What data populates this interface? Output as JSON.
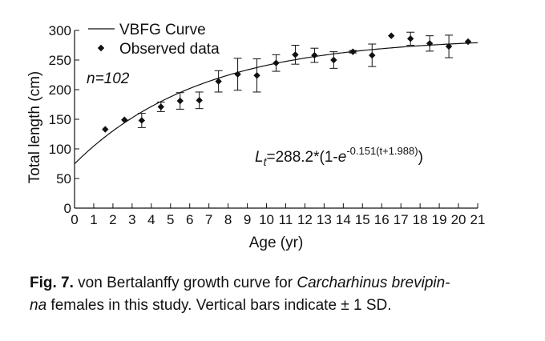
{
  "chart_data": {
    "type": "scatter",
    "xlabel": "Age (yr)",
    "ylabel": "Total length (cm)",
    "xlim": [
      0,
      21
    ],
    "ylim": [
      0,
      300
    ],
    "x_ticks": [
      0,
      1,
      2,
      3,
      4,
      5,
      6,
      7,
      8,
      9,
      10,
      11,
      12,
      13,
      14,
      15,
      16,
      17,
      18,
      19,
      20,
      21
    ],
    "y_ticks": [
      0,
      50,
      100,
      150,
      200,
      250,
      300
    ],
    "grid": false,
    "legend_position": "top-left",
    "series": [
      {
        "name": "VBFG Curve",
        "kind": "line",
        "model": {
          "Linf": 288.2,
          "k": 0.151,
          "t0": -1.988
        }
      },
      {
        "name": "Observed data",
        "kind": "scatter",
        "marker": "diamond",
        "points": [
          {
            "x": 1.6,
            "y": 133,
            "sd": 0
          },
          {
            "x": 2.6,
            "y": 149,
            "sd": 0
          },
          {
            "x": 3.5,
            "y": 148,
            "sd": 12
          },
          {
            "x": 4.5,
            "y": 171,
            "sd": 8
          },
          {
            "x": 5.5,
            "y": 181,
            "sd": 14
          },
          {
            "x": 6.5,
            "y": 182,
            "sd": 14
          },
          {
            "x": 7.5,
            "y": 214,
            "sd": 18
          },
          {
            "x": 8.5,
            "y": 226,
            "sd": 27
          },
          {
            "x": 9.5,
            "y": 224,
            "sd": 28
          },
          {
            "x": 10.5,
            "y": 245,
            "sd": 14
          },
          {
            "x": 11.5,
            "y": 259,
            "sd": 16
          },
          {
            "x": 12.5,
            "y": 258,
            "sd": 12
          },
          {
            "x": 13.5,
            "y": 250,
            "sd": 14
          },
          {
            "x": 14.5,
            "y": 264,
            "sd": 2
          },
          {
            "x": 15.5,
            "y": 258,
            "sd": 19
          },
          {
            "x": 16.5,
            "y": 291,
            "sd": 0
          },
          {
            "x": 17.5,
            "y": 286,
            "sd": 11
          },
          {
            "x": 18.5,
            "y": 278,
            "sd": 13
          },
          {
            "x": 19.5,
            "y": 273,
            "sd": 19
          },
          {
            "x": 20.5,
            "y": 281,
            "sd": 0
          }
        ]
      }
    ],
    "annotations": {
      "n_label": "n=102",
      "equation": {
        "lhs": "L",
        "lhs_sub": "t",
        "mid": "=288.2*(1-",
        "e": "e",
        "exp": "-0.151(t+1.988)",
        "close": ")"
      }
    }
  },
  "caption": {
    "label": "Fig. 7.",
    "text_before": "  von Bertalanffy growth curve for ",
    "species": "Carcharhinus brevipin-",
    "species_line2": "na",
    "text_after": " females in this study.  Vertical bars indicate ± 1 SD."
  }
}
